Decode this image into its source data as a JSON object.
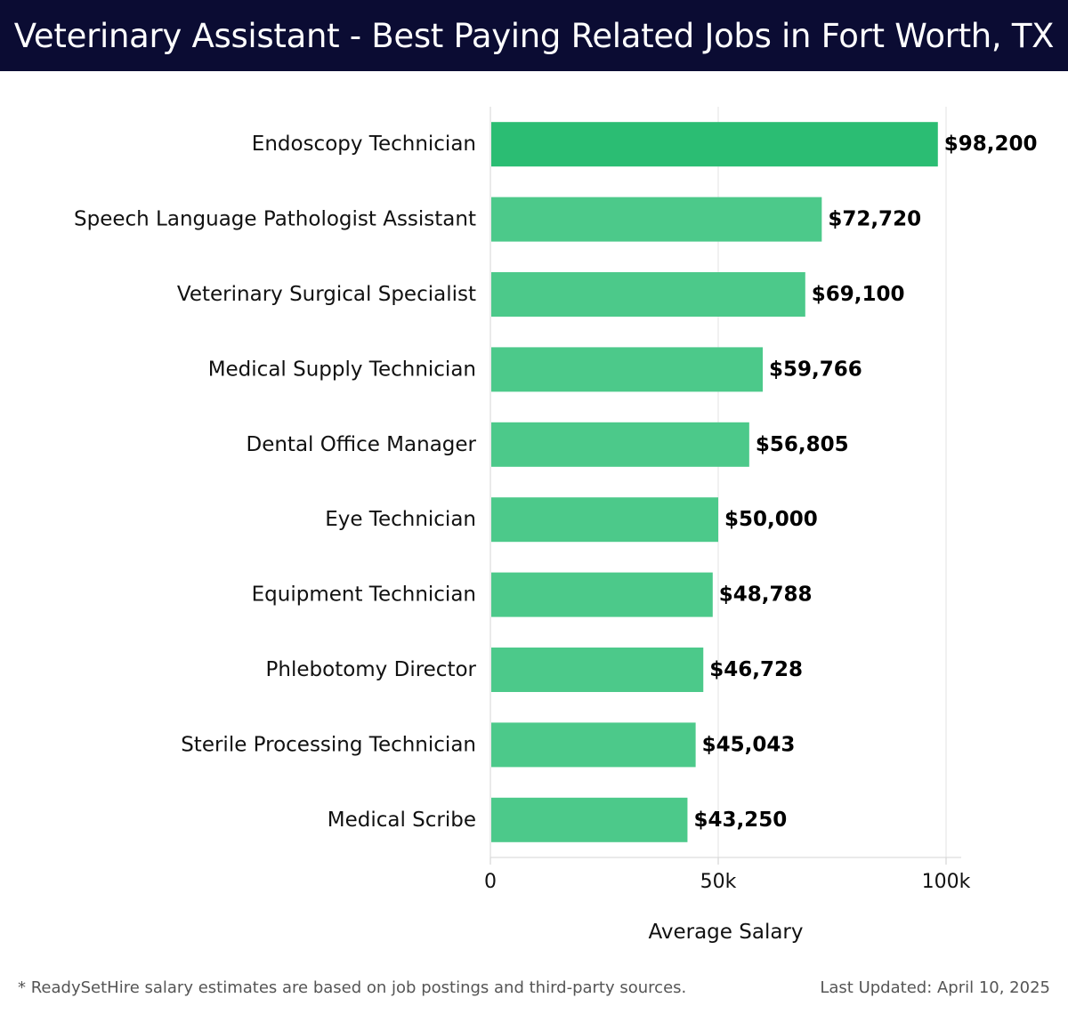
{
  "header": {
    "title": "Veterinary Assistant - Best Paying Related Jobs in Fort Worth, TX"
  },
  "colors": {
    "header_bg": "#0b0c33",
    "bar_top": "#2bbd73",
    "bar_other": "#4cc98a",
    "grid": "#e3e3e3",
    "text": "#111111"
  },
  "chart_data": {
    "type": "bar",
    "orientation": "horizontal",
    "categories": [
      "Endoscopy Technician",
      "Speech Language Pathologist Assistant",
      "Veterinary Surgical Specialist",
      "Medical Supply Technician",
      "Dental Office Manager",
      "Eye Technician",
      "Equipment Technician",
      "Phlebotomy Director",
      "Sterile Processing Technician",
      "Medical Scribe"
    ],
    "values": [
      98200,
      72720,
      69100,
      59766,
      56805,
      50000,
      48788,
      46728,
      45043,
      43250
    ],
    "value_labels": [
      "$98,200",
      "$72,720",
      "$69,100",
      "$59,766",
      "$56,805",
      "$50,000",
      "$48,788",
      "$46,728",
      "$45,043",
      "$43,250"
    ],
    "xlabel": "Average Salary",
    "ylabel": "",
    "xlim": [
      0,
      100000
    ],
    "xticks": [
      0,
      50000,
      100000
    ],
    "xtick_labels": [
      "0",
      "50k",
      "100k"
    ],
    "grid": "vertical"
  },
  "footer": {
    "note": "* ReadySetHire salary estimates are based on job postings and third-party sources.",
    "updated": "Last Updated: April 10, 2025"
  }
}
